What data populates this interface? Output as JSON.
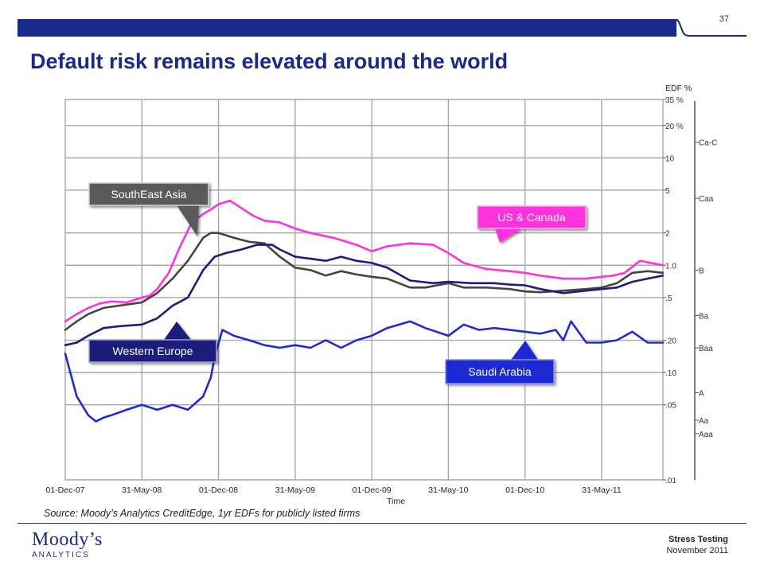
{
  "slide": {
    "page_number": "37",
    "title": "Default risk remains elevated around the world",
    "source": "Source: Moody’s Analytics CreditEdge, 1yr EDFs for publicly listed firms",
    "footer_title": "Stress Testing",
    "footer_date": "November 2011",
    "logo_main": "Moody’s",
    "logo_sub": "ANALYTICS"
  },
  "colors": {
    "brand": "#1a2a8c"
  },
  "chart_data": {
    "type": "line",
    "xlabel": "Time",
    "ylabel": "EDF %",
    "y_scale": "log",
    "ylim": [
      0.01,
      35
    ],
    "x_ticks": [
      "01-Dec-07",
      "31-May-08",
      "01-Dec-08",
      "31-May-09",
      "01-Dec-09",
      "31-May-10",
      "01-Dec-10",
      "31-May-11"
    ],
    "y_ticks": [
      {
        "value": 35,
        "label": "35 %"
      },
      {
        "value": 20,
        "label": "20 %"
      },
      {
        "value": 10,
        "label": "10"
      },
      {
        "value": 5,
        "label": "5"
      },
      {
        "value": 2,
        "label": "2"
      },
      {
        "value": 1.0,
        "label": "1.0"
      },
      {
        "value": 0.5,
        "label": ".5"
      },
      {
        "value": 0.2,
        "label": ".20"
      },
      {
        "value": 0.1,
        "label": ".10"
      },
      {
        "value": 0.05,
        "label": ".05"
      },
      {
        "value": 0.01,
        "label": ".01"
      }
    ],
    "ratings": [
      {
        "label": "Ca-C",
        "value": 14
      },
      {
        "label": "Caa",
        "value": 4.2
      },
      {
        "label": "B",
        "value": 0.9
      },
      {
        "label": "Ba",
        "value": 0.34
      },
      {
        "label": "Baa",
        "value": 0.17
      },
      {
        "label": "A",
        "value": 0.065
      },
      {
        "label": "Aa",
        "value": 0.036
      },
      {
        "label": "Aaa",
        "value": 0.027
      }
    ],
    "grid": true,
    "series": [
      {
        "name": "US & Canada",
        "color": "#ff33dd",
        "x": [
          0,
          0.15,
          0.3,
          0.45,
          0.6,
          0.8,
          1.0,
          1.1,
          1.2,
          1.35,
          1.5,
          1.65,
          1.8,
          1.9,
          2.0,
          2.15,
          2.3,
          2.45,
          2.6,
          2.8,
          3.0,
          3.2,
          3.5,
          3.8,
          4.0,
          4.2,
          4.5,
          4.8,
          5.0,
          5.2,
          5.5,
          5.8,
          6.0,
          6.2,
          6.5,
          6.8,
          7.0,
          7.15,
          7.3,
          7.5,
          7.8
        ],
        "values": [
          0.3,
          0.35,
          0.4,
          0.44,
          0.46,
          0.45,
          0.5,
          0.52,
          0.6,
          0.85,
          1.5,
          2.5,
          3.0,
          3.3,
          3.7,
          4.0,
          3.4,
          2.9,
          2.6,
          2.5,
          2.2,
          2.0,
          1.8,
          1.55,
          1.35,
          1.5,
          1.6,
          1.55,
          1.3,
          1.05,
          0.92,
          0.88,
          0.85,
          0.8,
          0.75,
          0.75,
          0.78,
          0.8,
          0.85,
          1.1,
          1.0
        ]
      },
      {
        "name": "SouthEast Asia",
        "color": "#444444",
        "x": [
          0,
          0.15,
          0.3,
          0.5,
          0.7,
          1.0,
          1.2,
          1.4,
          1.6,
          1.8,
          1.9,
          2.0,
          2.2,
          2.4,
          2.6,
          2.8,
          3.0,
          3.2,
          3.4,
          3.6,
          3.8,
          4.0,
          4.2,
          4.5,
          4.7,
          5.0,
          5.2,
          5.5,
          5.8,
          6.0,
          6.2,
          6.5,
          6.8,
          7.0,
          7.2,
          7.4,
          7.6,
          7.8
        ],
        "values": [
          0.25,
          0.3,
          0.35,
          0.4,
          0.42,
          0.45,
          0.55,
          0.75,
          1.1,
          1.8,
          2.0,
          2.0,
          1.8,
          1.65,
          1.6,
          1.2,
          0.95,
          0.9,
          0.8,
          0.88,
          0.82,
          0.78,
          0.75,
          0.62,
          0.62,
          0.68,
          0.62,
          0.62,
          0.6,
          0.57,
          0.56,
          0.58,
          0.6,
          0.62,
          0.68,
          0.85,
          0.88,
          0.85
        ]
      },
      {
        "name": "Western Europe",
        "color": "#1a1f7a",
        "x": [
          0,
          0.15,
          0.3,
          0.5,
          0.7,
          1.0,
          1.2,
          1.4,
          1.6,
          1.8,
          1.95,
          2.1,
          2.3,
          2.5,
          2.7,
          2.8,
          3.0,
          3.2,
          3.4,
          3.6,
          3.8,
          4.0,
          4.2,
          4.5,
          4.8,
          5.0,
          5.3,
          5.6,
          5.8,
          6.0,
          6.2,
          6.5,
          6.8,
          7.0,
          7.2,
          7.4,
          7.6,
          7.8
        ],
        "values": [
          0.18,
          0.19,
          0.22,
          0.26,
          0.27,
          0.28,
          0.32,
          0.42,
          0.5,
          0.9,
          1.2,
          1.3,
          1.4,
          1.55,
          1.55,
          1.4,
          1.2,
          1.15,
          1.1,
          1.2,
          1.1,
          1.05,
          0.95,
          0.72,
          0.68,
          0.7,
          0.68,
          0.68,
          0.66,
          0.65,
          0.6,
          0.55,
          0.58,
          0.6,
          0.62,
          0.7,
          0.75,
          0.8
        ]
      },
      {
        "name": "Saudi Arabia",
        "color": "#1f2ad6",
        "x": [
          0,
          0.15,
          0.3,
          0.4,
          0.5,
          0.6,
          0.8,
          1.0,
          1.2,
          1.4,
          1.6,
          1.8,
          1.9,
          1.95,
          2.05,
          2.2,
          2.4,
          2.6,
          2.8,
          3.0,
          3.2,
          3.4,
          3.6,
          3.8,
          4.0,
          4.2,
          4.5,
          4.7,
          5.0,
          5.2,
          5.4,
          5.6,
          5.8,
          6.0,
          6.2,
          6.4,
          6.5,
          6.6,
          6.8,
          7.0,
          7.2,
          7.4,
          7.6,
          7.8
        ],
        "values": [
          0.15,
          0.06,
          0.04,
          0.035,
          0.038,
          0.04,
          0.045,
          0.05,
          0.045,
          0.05,
          0.045,
          0.06,
          0.09,
          0.14,
          0.25,
          0.22,
          0.2,
          0.18,
          0.17,
          0.18,
          0.17,
          0.2,
          0.17,
          0.2,
          0.22,
          0.26,
          0.3,
          0.26,
          0.22,
          0.28,
          0.25,
          0.26,
          0.25,
          0.24,
          0.23,
          0.25,
          0.2,
          0.3,
          0.19,
          0.19,
          0.2,
          0.24,
          0.19,
          0.19
        ]
      }
    ],
    "annotations": [
      {
        "text": "SouthEast Asia",
        "series": "SouthEast Asia"
      },
      {
        "text": "US & Canada",
        "series": "US & Canada"
      },
      {
        "text": "Western Europe",
        "series": "Western Europe"
      },
      {
        "text": "Saudi Arabia",
        "series": "Saudi Arabia"
      }
    ]
  }
}
